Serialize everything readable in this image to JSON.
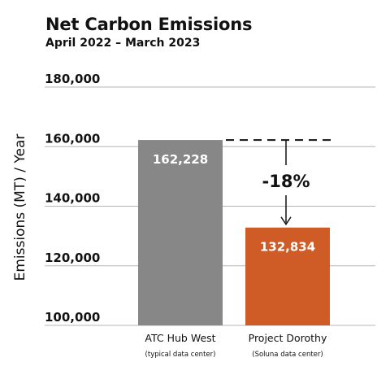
{
  "title": "Net Carbon Emissions",
  "subtitle": "April 2022 – March 2023",
  "chart_data": {
    "type": "bar",
    "title": "Net Carbon Emissions",
    "subtitle": "April 2022 – March 2023",
    "ylabel": "Emissions (MT) / Year",
    "xlabel": "",
    "ylim": [
      100000,
      180000
    ],
    "yticks": [
      100000,
      120000,
      140000,
      160000,
      180000
    ],
    "ytick_labels": [
      "100,000",
      "120,000",
      "140,000",
      "160,000",
      "180,000"
    ],
    "categories": [
      "ATC Hub West",
      "Project Dorothy"
    ],
    "category_sublabels": [
      "(typical data center)",
      "(Soluna data center)"
    ],
    "values": [
      162228,
      132834
    ],
    "value_labels": [
      "162,228",
      "132,834"
    ],
    "colors": [
      "#878787",
      "#cf5b26"
    ],
    "grid": true,
    "annotation": {
      "text": "-18%",
      "style": "dashed reference line with downward arrow"
    }
  }
}
